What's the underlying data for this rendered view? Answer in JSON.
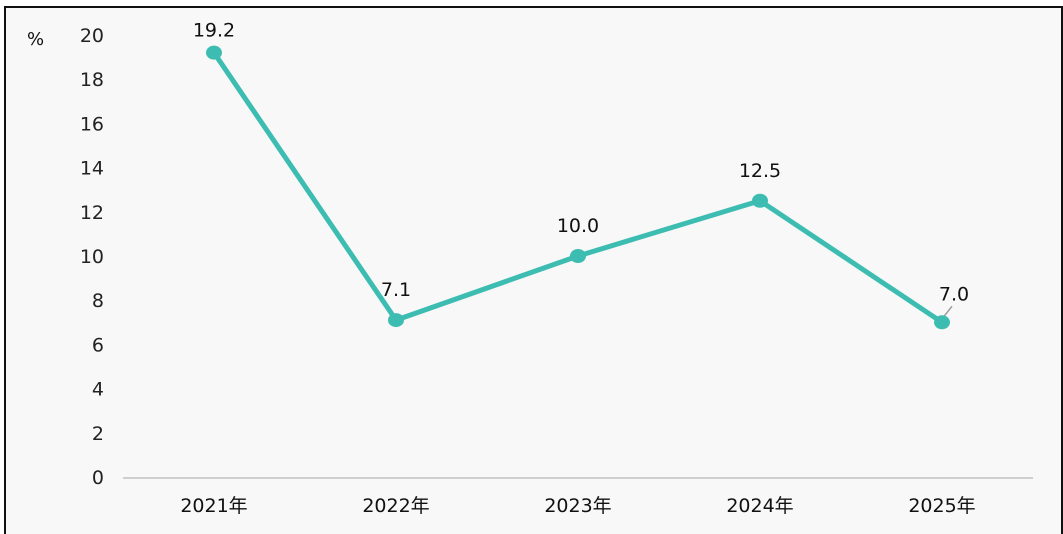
{
  "chart_data": {
    "type": "line",
    "unit_label": "%",
    "categories": [
      "2021年",
      "2022年",
      "2023年",
      "2024年",
      "2025年"
    ],
    "series": [
      {
        "values": [
          19.2,
          7.1,
          10.0,
          12.5,
          7.0
        ]
      }
    ],
    "data_labels": [
      "19.2",
      "7.1",
      "10.0",
      "12.5",
      "7.0"
    ],
    "y_ticks": [
      "0",
      "2",
      "4",
      "6",
      "8",
      "10",
      "12",
      "14",
      "16",
      "18",
      "20"
    ],
    "ylim": [
      0,
      20
    ],
    "grid": false,
    "legend": "none",
    "colors": {
      "line": "#3dbdb2",
      "axis": "#cfcfcf",
      "leader": "#9a9a9a"
    }
  }
}
